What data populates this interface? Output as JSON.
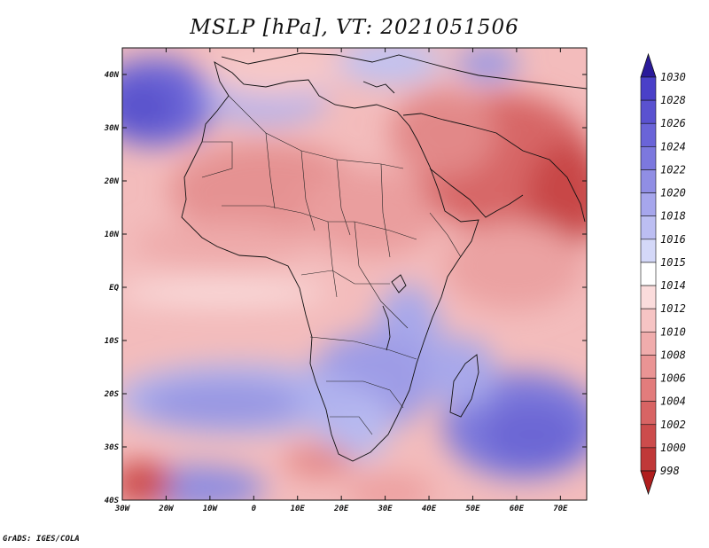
{
  "title": "MSLP [hPa], VT: 2021051506",
  "credit": "GrADS: IGES/COLA",
  "map": {
    "lon_range": [
      -30,
      76
    ],
    "lat_range": [
      -40,
      45
    ],
    "lon_ticks": [
      {
        "value": -30,
        "label": "30W"
      },
      {
        "value": -20,
        "label": "20W"
      },
      {
        "value": -10,
        "label": "10W"
      },
      {
        "value": 0,
        "label": "0"
      },
      {
        "value": 10,
        "label": "10E"
      },
      {
        "value": 20,
        "label": "20E"
      },
      {
        "value": 30,
        "label": "30E"
      },
      {
        "value": 40,
        "label": "40E"
      },
      {
        "value": 50,
        "label": "50E"
      },
      {
        "value": 60,
        "label": "60E"
      },
      {
        "value": 70,
        "label": "70E"
      }
    ],
    "lat_ticks": [
      {
        "value": 40,
        "label": "40N"
      },
      {
        "value": 30,
        "label": "30N"
      },
      {
        "value": 20,
        "label": "20N"
      },
      {
        "value": 10,
        "label": "10N"
      },
      {
        "value": 0,
        "label": "EQ"
      },
      {
        "value": -10,
        "label": "10S"
      },
      {
        "value": -20,
        "label": "20S"
      },
      {
        "value": -30,
        "label": "30S"
      },
      {
        "value": -40,
        "label": "40S"
      }
    ]
  },
  "colorbar": {
    "levels": [
      "1030",
      "1028",
      "1026",
      "1024",
      "1022",
      "1020",
      "1018",
      "1016",
      "1015",
      "1014",
      "1012",
      "1010",
      "1008",
      "1006",
      "1004",
      "1002",
      "1000",
      "998"
    ],
    "colors": [
      "#4a40c8",
      "#5a52d0",
      "#6a64d8",
      "#7c78de",
      "#908ee4",
      "#a6a6ec",
      "#bcbef2",
      "#d4d8f8",
      "#ffffff",
      "#fbdcdc",
      "#f6c4c4",
      "#f0acac",
      "#ea9494",
      "#e27c7c",
      "#d86464",
      "#cc4c4c",
      "#c03838"
    ],
    "top_color": "#2a1a9a",
    "bottom_color": "#b01e1e"
  }
}
